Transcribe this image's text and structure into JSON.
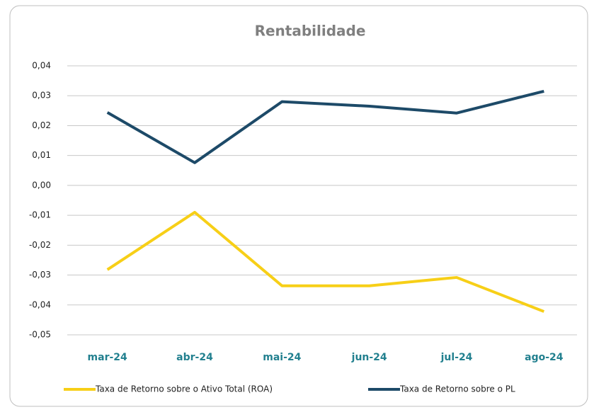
{
  "chart_data": {
    "type": "line",
    "title": "Rentabilidade",
    "categories": [
      "mar-24",
      "abr-24",
      "mai-24",
      "jun-24",
      "jul-24",
      "ago-24"
    ],
    "series": [
      {
        "name": "Taxa de Retorno sobre o Ativo Total (ROA)",
        "color": "#f7cf17",
        "values": [
          -0.0282,
          -0.009,
          -0.0336,
          -0.0336,
          -0.0308,
          -0.0422
        ]
      },
      {
        "name": "Taxa de Retorno sobre o PL",
        "color": "#1d4a68",
        "values": [
          0.0244,
          0.0076,
          0.028,
          0.0265,
          0.0242,
          0.0315
        ]
      }
    ],
    "ylim": [
      -0.05,
      0.04
    ],
    "yticks": [
      {
        "value": -0.05,
        "label": "-0,05"
      },
      {
        "value": -0.04,
        "label": "-0,04"
      },
      {
        "value": -0.03,
        "label": "-0,03"
      },
      {
        "value": -0.02,
        "label": "-0,02"
      },
      {
        "value": -0.01,
        "label": "-0,01"
      },
      {
        "value": 0,
        "label": "0,00"
      },
      {
        "value": 0.01,
        "label": "0,01"
      },
      {
        "value": 0.02,
        "label": "0,02"
      },
      {
        "value": 0.03,
        "label": "0,03"
      },
      {
        "value": 0.04,
        "label": "0,04"
      }
    ],
    "grid": true
  }
}
